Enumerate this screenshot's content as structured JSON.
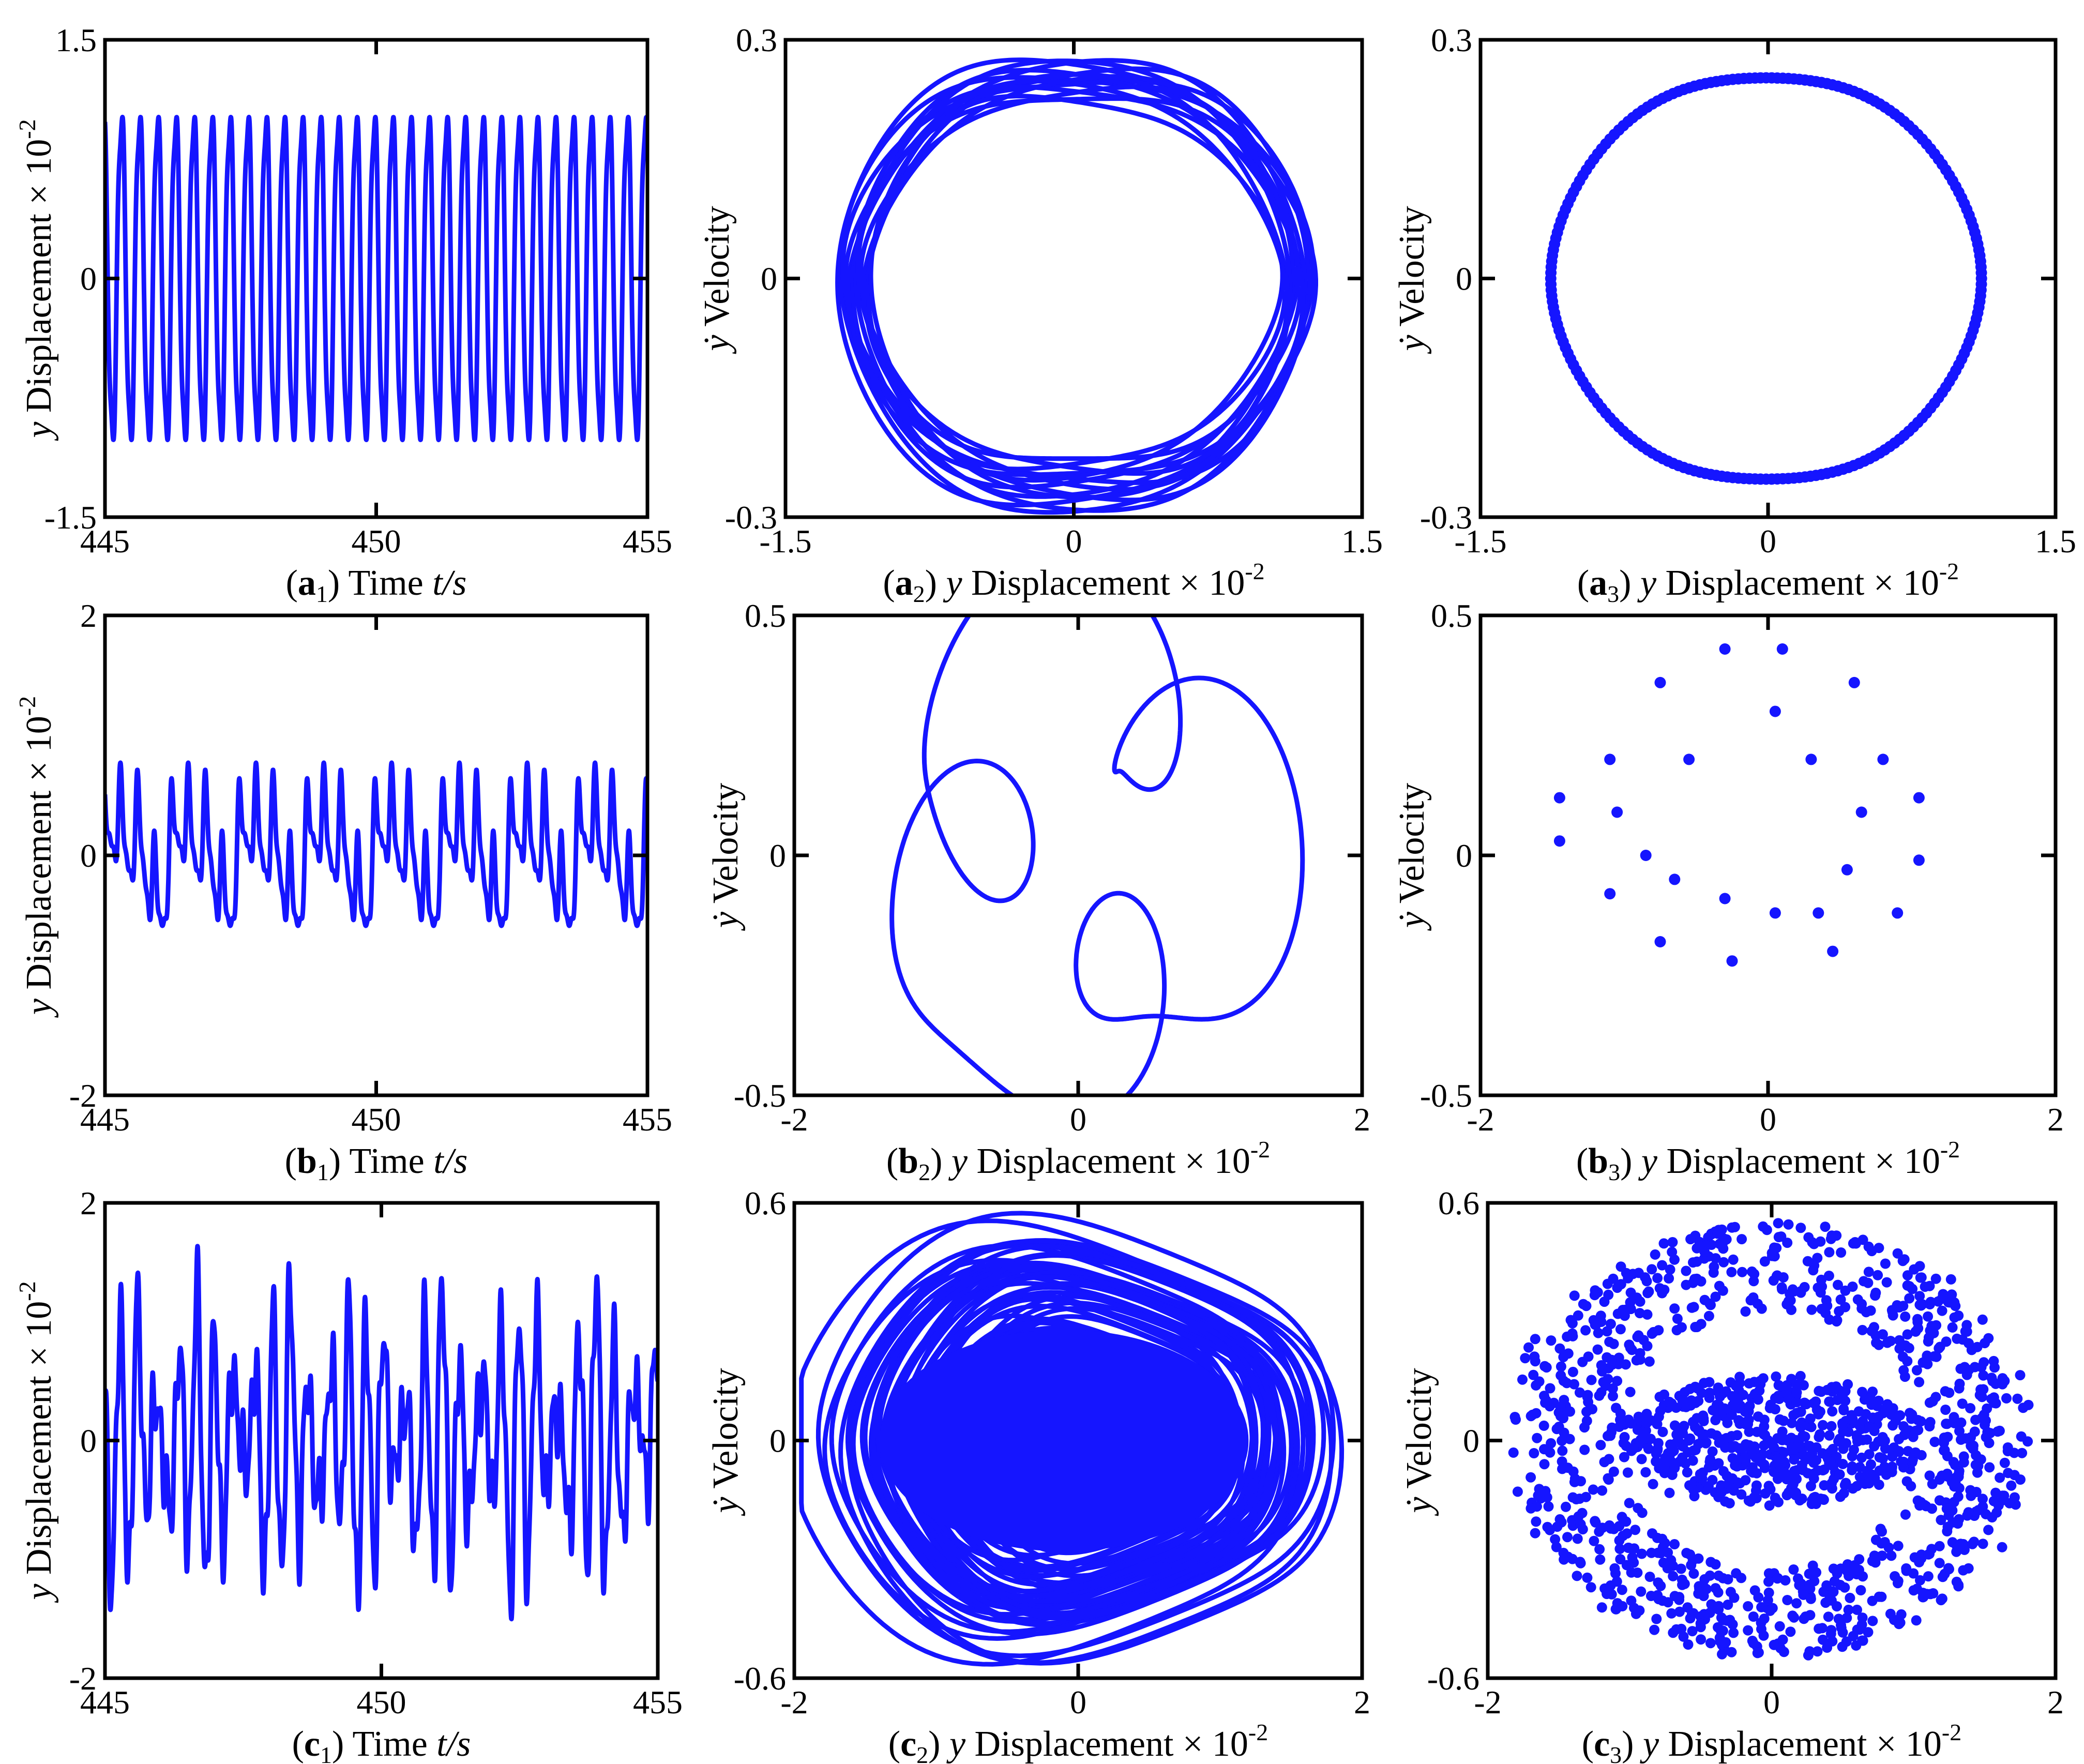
{
  "colors": {
    "series": "#1515ff",
    "axes": "#000000"
  },
  "panels": [
    {
      "id": "a1",
      "chart_data": {
        "type": "line",
        "xlim": [
          445,
          455
        ],
        "ylim": [
          -1.5,
          1.5
        ],
        "xticks": [
          "445",
          "450",
          "455"
        ],
        "yticks": [
          "1.5",
          "0",
          "-1.5"
        ],
        "caption": {
          "prefix": "(",
          "letter": "a",
          "sub": "1",
          "suffix": ") Time ",
          "ital": "t/s"
        },
        "ylabel": {
          "var": "y",
          "text": " Displacement × 10",
          "sup": "-2"
        },
        "signal": {
          "kind": "periodic",
          "period": 0.333,
          "amp": 1.1,
          "harmonics": [
            [
              1,
              1.0
            ],
            [
              3,
              0.12
            ]
          ]
        }
      }
    },
    {
      "id": "a2",
      "chart_data": {
        "type": "line",
        "xlim": [
          -1.5,
          1.5
        ],
        "ylim": [
          -0.3,
          0.3
        ],
        "xticks": [
          "-1.5",
          "0",
          "1.5"
        ],
        "yticks": [
          "0.3",
          "0",
          "-0.3"
        ],
        "caption": {
          "prefix": "(",
          "letter": "a",
          "sub": "2",
          "suffix": ")  ",
          "ital": "y",
          "rest": " Displacement × 10",
          "sup": "-2"
        },
        "ylabel": {
          "var": "ẏ",
          "text": "  Velocity"
        },
        "phase": {
          "kind": "band",
          "x_range": [
            -1.17,
            1.2
          ],
          "y_range": [
            -0.29,
            0.28
          ],
          "loops": 14,
          "spread": 0.05
        }
      }
    },
    {
      "id": "a3",
      "chart_data": {
        "type": "scatter",
        "xlim": [
          -1.5,
          1.5
        ],
        "ylim": [
          -0.3,
          0.3
        ],
        "xticks": [
          "-1.5",
          "0",
          "1.5"
        ],
        "yticks": [
          "0.3",
          "0",
          "-0.3"
        ],
        "caption": {
          "prefix": "(",
          "letter": "a",
          "sub": "3",
          "suffix": ") ",
          "ital": "y",
          "rest": " Displacement × 10",
          "sup": "-2"
        },
        "ylabel": {
          "var": "ẏ",
          "text": "  Velocity"
        },
        "phase": {
          "kind": "ring",
          "x_range": [
            -1.08,
            1.06
          ],
          "y_range": [
            -0.26,
            0.26
          ],
          "points": 220
        }
      }
    },
    {
      "id": "b1",
      "chart_data": {
        "type": "line",
        "xlim": [
          445,
          455
        ],
        "ylim": [
          -2,
          2
        ],
        "xticks": [
          "445",
          "450",
          "455"
        ],
        "yticks": [
          "2",
          "0",
          "-2"
        ],
        "caption": {
          "prefix": "(",
          "letter": "b",
          "sub": "1",
          "suffix": ") Time ",
          "ital": "t/s"
        },
        "ylabel": {
          "var": "y",
          "text": " Displacement × 10",
          "sup": "-2"
        },
        "signal": {
          "kind": "periodic",
          "period": 1.25,
          "amp": 1.0,
          "harmonics": [
            [
              1,
              0.45
            ],
            [
              2,
              0.25
            ],
            [
              4,
              0.55
            ],
            [
              8,
              0.28
            ],
            [
              12,
              0.12
            ]
          ]
        }
      }
    },
    {
      "id": "b2",
      "chart_data": {
        "type": "line",
        "xlim": [
          -2,
          2
        ],
        "ylim": [
          -0.5,
          0.5
        ],
        "xticks": [
          "-2",
          "0",
          "2"
        ],
        "yticks": [
          "0.5",
          "0",
          "-0.5"
        ],
        "caption": {
          "prefix": "(",
          "letter": "b",
          "sub": "2",
          "suffix": ")  ",
          "ital": "y",
          "rest": " Displacement × 10",
          "sup": "-2"
        },
        "ylabel": {
          "var": "ẏ",
          "text": "  Velocity"
        },
        "phase": {
          "kind": "curve",
          "x_range": [
            -1.45,
            1.6
          ],
          "y_range": [
            -0.47,
            0.44
          ]
        }
      }
    },
    {
      "id": "b3",
      "chart_data": {
        "type": "scatter",
        "xlim": [
          -2,
          2
        ],
        "ylim": [
          -0.5,
          0.5
        ],
        "xticks": [
          "-2",
          "0",
          "2"
        ],
        "yticks": [
          "0.5",
          "0",
          "-0.5"
        ],
        "caption": {
          "prefix": "(",
          "letter": "b",
          "sub": "3",
          "suffix": ") ",
          "ital": "y",
          "rest": " Displacement × 10",
          "sup": "-2"
        },
        "ylabel": {
          "var": "ẏ",
          "text": "  Velocity"
        },
        "points": [
          [
            -0.3,
            0.43
          ],
          [
            0.1,
            0.43
          ],
          [
            -0.75,
            0.36
          ],
          [
            0.6,
            0.36
          ],
          [
            0.05,
            0.3
          ],
          [
            -1.1,
            0.2
          ],
          [
            -0.55,
            0.2
          ],
          [
            0.3,
            0.2
          ],
          [
            0.8,
            0.2
          ],
          [
            -1.45,
            0.12
          ],
          [
            -1.05,
            0.09
          ],
          [
            0.65,
            0.09
          ],
          [
            1.05,
            0.12
          ],
          [
            -1.45,
            0.03
          ],
          [
            -0.85,
            0.0
          ],
          [
            0.55,
            -0.03
          ],
          [
            1.05,
            -0.01
          ],
          [
            -0.65,
            -0.05
          ],
          [
            -1.1,
            -0.08
          ],
          [
            -0.3,
            -0.09
          ],
          [
            0.05,
            -0.12
          ],
          [
            0.35,
            -0.12
          ],
          [
            0.9,
            -0.12
          ],
          [
            -0.75,
            -0.18
          ],
          [
            0.45,
            -0.2
          ],
          [
            -0.25,
            -0.22
          ]
        ]
      }
    },
    {
      "id": "c1",
      "chart_data": {
        "type": "line",
        "xlim": [
          445,
          455
        ],
        "ylim": [
          -2,
          2
        ],
        "xticks": [
          "445",
          "450",
          "455"
        ],
        "yticks": [
          "2",
          "0",
          "-2"
        ],
        "caption": {
          "prefix": "(",
          "letter": "c",
          "sub": "1",
          "suffix": ") Time ",
          "ital": "t/s"
        },
        "ylabel": {
          "var": "y",
          "text": " Displacement × 10",
          "sup": "-2"
        },
        "signal": {
          "kind": "chaotic",
          "amp": 1.0,
          "harmonics": [
            [
              2.9,
              0.9
            ],
            [
              3.6,
              0.55
            ],
            [
              7.3,
              0.3
            ],
            [
              12.2,
              0.14
            ],
            [
              1.1,
              0.2
            ]
          ]
        }
      }
    },
    {
      "id": "c2",
      "chart_data": {
        "type": "line",
        "xlim": [
          -2,
          2
        ],
        "ylim": [
          -0.6,
          0.6
        ],
        "xticks": [
          "-2",
          "0",
          "2"
        ],
        "yticks": [
          "0.6",
          "0",
          "-0.6"
        ],
        "caption": {
          "prefix": "(",
          "letter": "c",
          "sub": "2",
          "suffix": ")  ",
          "ital": "y",
          "rest": " Displacement × 10",
          "sup": "-2"
        },
        "ylabel": {
          "var": "ẏ",
          "text": "  Velocity"
        },
        "phase": {
          "kind": "chaos",
          "x_range": [
            -1.95,
            1.95
          ],
          "y_range": [
            -0.57,
            0.56
          ],
          "loops": 60
        }
      }
    },
    {
      "id": "c3",
      "chart_data": {
        "type": "scatter",
        "xlim": [
          -2,
          2
        ],
        "ylim": [
          -0.6,
          0.6
        ],
        "xticks": [
          "-2",
          "0",
          "2"
        ],
        "yticks": [
          "0.6",
          "0",
          "-0.6"
        ],
        "caption": {
          "prefix": "(",
          "letter": "c",
          "sub": "3",
          "suffix": ") ",
          "ital": "y",
          "rest": " Displacement × 10",
          "sup": "-2"
        },
        "ylabel": {
          "var": "ẏ",
          "text": "  Velocity"
        },
        "phase": {
          "kind": "chaos-points",
          "x_range": [
            -1.95,
            1.95
          ],
          "y_range": [
            -0.57,
            0.56
          ],
          "points": 1500
        }
      }
    }
  ]
}
